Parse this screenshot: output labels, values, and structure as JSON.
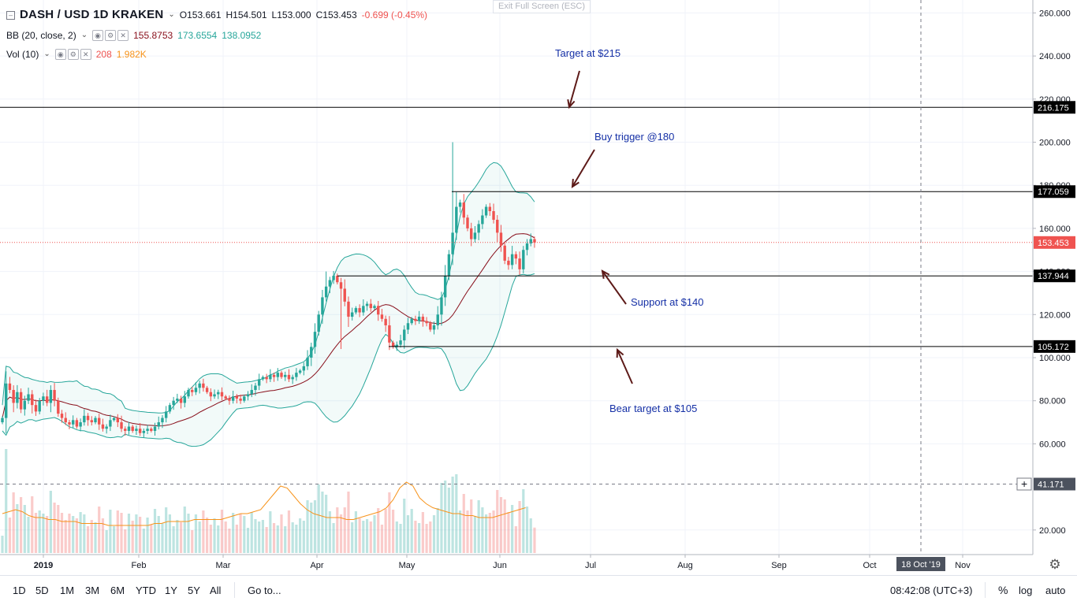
{
  "header": {
    "symbol": "DASH / USD",
    "interval": "1D",
    "exchange": "KRAKEN",
    "open": "O153.661",
    "high": "H154.501",
    "low": "L153.000",
    "close": "C153.453",
    "change": "-0.699 (-0.45%)"
  },
  "indicators": {
    "bb": {
      "label": "BB (20, close, 2)",
      "basis": "155.8753",
      "upper": "173.6554",
      "lower": "138.0952"
    },
    "vol": {
      "label": "Vol (10)",
      "value": "208",
      "ma": "1.982K"
    }
  },
  "exit_fullscreen": "Exit Full Screen (ESC)",
  "annotations": {
    "target": "Target at $215",
    "buy_trigger": "Buy trigger @180",
    "support": "Support at $140",
    "bear_target": "Bear target at $105"
  },
  "bottom_bar": {
    "timeframes": [
      "1D",
      "5D",
      "1M",
      "3M",
      "6M",
      "YTD",
      "1Y",
      "5Y",
      "All"
    ],
    "goto": "Go to...",
    "time": "08:42:08 (UTC+3)",
    "percent": "%",
    "log": "log",
    "auto": "auto"
  },
  "colors": {
    "up": "#26a69a",
    "down": "#ef5350",
    "band": "#26a69a",
    "basis": "#880e1a",
    "volume_ma": "#f7931a",
    "annotation_text": "#1530a6",
    "arrow": "#5d1a18",
    "price_line": "#ef5350"
  },
  "chart_data": {
    "type": "candlestick",
    "title": "DASH / USD 1D KRAKEN",
    "price_axis": {
      "ticks": [
        "260.000",
        "240.000",
        "220.000",
        "200.000",
        "180.000",
        "160.000",
        "140.000",
        "120.000",
        "100.000",
        "80.000",
        "60.000",
        "20.000"
      ],
      "ylim": [
        10,
        263
      ]
    },
    "time_axis": {
      "ticks": [
        "2019",
        "Feb",
        "Mar",
        "Apr",
        "May",
        "Jun",
        "Jul",
        "Aug",
        "Sep",
        "Oct",
        "Nov"
      ],
      "cursor_label": "18 Oct '19"
    },
    "price_labels": [
      {
        "value": 216.175,
        "label": "216.175"
      },
      {
        "value": 177.059,
        "label": "177.059"
      },
      {
        "value": 153.453,
        "label": "153.453"
      },
      {
        "value": 137.944,
        "label": "137.944"
      },
      {
        "value": 105.172,
        "label": "105.172"
      },
      {
        "value": 41.171,
        "label": "41.171"
      }
    ],
    "horizontal_levels": [
      216.175,
      177.059,
      137.944,
      105.172
    ],
    "current_price": 153.453,
    "crosshair_value": 41.171,
    "close_series": [
      72,
      88,
      85,
      79,
      84,
      76,
      80,
      83,
      78,
      75,
      80,
      82,
      79,
      85,
      80,
      74,
      72,
      70,
      69,
      71,
      68,
      70,
      73,
      71,
      70,
      72,
      69,
      67,
      68,
      71,
      72,
      70,
      67,
      66,
      68,
      66,
      67,
      65,
      66,
      67,
      66,
      68,
      70,
      72,
      75,
      78,
      80,
      81,
      79,
      82,
      85,
      84,
      86,
      88,
      86,
      84,
      82,
      83,
      84,
      82,
      81,
      80,
      82,
      81,
      80,
      82,
      83,
      85,
      87,
      90,
      91,
      90,
      92,
      91,
      93,
      91,
      92,
      90,
      91,
      93,
      94,
      96,
      100,
      105,
      112,
      120,
      128,
      133,
      136,
      138,
      135,
      132,
      126,
      119,
      121,
      123,
      121,
      124,
      125,
      123,
      124,
      120,
      118,
      115,
      107,
      105,
      106,
      108,
      113,
      116,
      118,
      117,
      119,
      117,
      116,
      113,
      115,
      120,
      128,
      138,
      148,
      158,
      170,
      172,
      165,
      160,
      155,
      158,
      162,
      166,
      170,
      168,
      164,
      158,
      152,
      145,
      143,
      148,
      146,
      141,
      150,
      153,
      155,
      153.45
    ],
    "volume_ma_series": [
      20,
      21,
      22,
      21,
      19,
      18,
      18,
      17,
      17,
      16,
      16,
      16,
      15,
      15,
      15,
      15,
      14,
      14,
      14,
      14,
      14,
      14,
      14,
      15,
      15,
      16,
      16,
      16,
      16,
      17,
      17,
      17,
      17,
      17,
      18,
      19,
      20,
      20,
      21,
      22,
      26,
      30,
      34,
      33,
      29,
      25,
      22,
      20,
      19,
      18,
      18,
      18,
      17,
      17,
      18,
      19,
      20,
      21,
      23,
      27,
      33,
      36,
      34,
      28,
      25,
      23,
      22,
      21,
      20,
      20,
      19,
      19,
      18,
      18,
      18,
      19,
      20,
      21,
      22,
      23
    ]
  }
}
